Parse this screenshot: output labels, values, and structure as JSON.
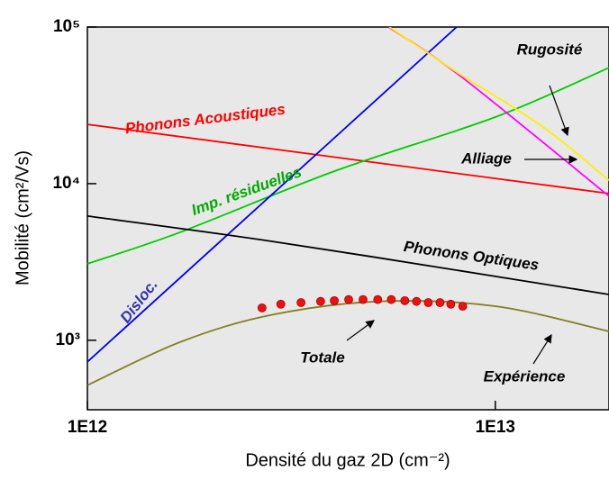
{
  "chart_data": {
    "type": "line",
    "xlabel": "Densité du gaz 2D (cm⁻²)",
    "ylabel": "Mobilité (cm²/Vs)",
    "log_x": true,
    "log_y": true,
    "xlim": [
      1000000000000.0,
      19000000000000.0
    ],
    "ylim": [
      360,
      100000
    ],
    "xticks": [
      {
        "value": 1000000000000.0,
        "label": "1E12"
      },
      {
        "value": 10000000000000.0,
        "label": "1E13"
      }
    ],
    "yticks": [
      {
        "value": 1000,
        "label": "10³"
      },
      {
        "value": 10000,
        "label": "10⁴"
      },
      {
        "value": 100000,
        "label": "10⁵"
      }
    ],
    "series": [
      {
        "name": "Phonons Acoustiques",
        "color": "#ff0000",
        "x": [
          1000000000000.0,
          19000000000000.0
        ],
        "values": [
          23900,
          8650
        ]
      },
      {
        "name": "Imp. résiduelles",
        "color": "#00cc00",
        "x": [
          1000000000000.0,
          1690000000000.0,
          4030000000000.0,
          10000000000000.0,
          19000000000000.0
        ],
        "values": [
          3080,
          4900,
          12000,
          26600,
          55000
        ]
      },
      {
        "name": "Disloc.",
        "color": "#0000ee",
        "x": [
          1000000000000.0,
          8040000000000.0
        ],
        "values": [
          728,
          100000
        ]
      },
      {
        "name": "Phonons Optiques",
        "color": "#000000",
        "x": [
          1000000000000.0,
          2820000000000.0,
          10000000000000.0,
          19000000000000.0
        ],
        "values": [
          6210,
          4290,
          2560,
          1960
        ]
      },
      {
        "name": "Alliage",
        "color": "#ff00ff",
        "x": [
          5470000000000.0,
          8240000000000.0,
          19000000000000.0
        ],
        "values": [
          100000,
          48300,
          8320
        ]
      },
      {
        "name": "Rugosité",
        "color": "#ffee00",
        "x": [
          5500000000000.0,
          8040000000000.0,
          13000000000000.0,
          19000000000000.0
        ],
        "values": [
          100000,
          51600,
          23300,
          10500
        ]
      },
      {
        "name": "Totale",
        "color": "#808020",
        "x": [
          1000000000000.0,
          1690000000000.0,
          2820000000000.0,
          5200000000000.0,
          10000000000000.0,
          19000000000000.0
        ],
        "values": [
          516,
          975,
          1450,
          1770,
          1650,
          1140
        ]
      },
      {
        "name": "Expérience",
        "color": "#ee1111",
        "mode": "markers",
        "x": [
          2680000000000.0,
          2980000000000.0,
          3340000000000.0,
          3730000000000.0,
          4030000000000.0,
          4370000000000.0,
          4740000000000.0,
          5150000000000.0,
          5560000000000.0,
          6000000000000.0,
          6410000000000.0,
          6850000000000.0,
          7320000000000.0,
          7780000000000.0,
          8320000000000.0
        ],
        "values": [
          1610,
          1700,
          1740,
          1770,
          1790,
          1820,
          1820,
          1820,
          1820,
          1790,
          1770,
          1740,
          1740,
          1700,
          1650
        ]
      }
    ]
  }
}
